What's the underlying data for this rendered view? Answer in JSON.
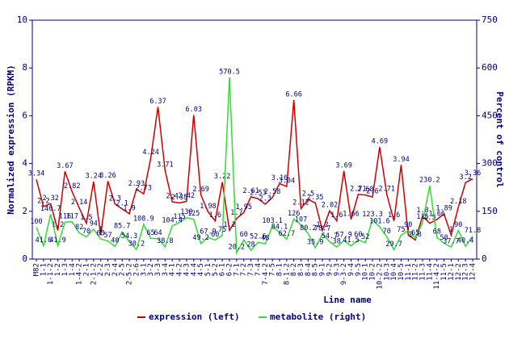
{
  "chart_data": {
    "type": "line",
    "xlabel": "Line name",
    "ylabel": "Normalized expression (RPKM)",
    "y2label": "Percent of control",
    "categories": [
      "M82",
      "1-1",
      "1-1-2",
      "1-2",
      "1-3",
      "1-4",
      "1-4-2",
      "2-1",
      "2-1-2",
      "2-2",
      "2-3",
      "2-4",
      "2-5",
      "2-5-2",
      "2-6",
      "3-1",
      "3-2",
      "3-3",
      "3-4",
      "4-1",
      "4-2",
      "4-3",
      "4-4",
      "4-5",
      "5-1",
      "5-2",
      "6-1",
      "6-2",
      "7-1",
      "7-2",
      "7-3",
      "7-4",
      "7-4-2",
      "7-5",
      "8-1",
      "8-1-2",
      "8-2",
      "8-3",
      "8-4",
      "8-5",
      "9-1",
      "9-2",
      "9-3",
      "9-3-2",
      "9-4",
      "9-5",
      "10-1",
      "10-2",
      "10-2-2",
      "10-3",
      "10-4",
      "10-5",
      "11-1",
      "11-2",
      "11-3",
      "11-4",
      "11-4-2",
      "11-5",
      "12-1",
      "12-2",
      "12-3",
      "12-4"
    ],
    "series": [
      {
        "name": "expression (left)",
        "color": "#cc0000",
        "axis": "y",
        "values": [
          3.34,
          2.2,
          2.32,
          1.2,
          3.67,
          2.82,
          2.14,
          1.5,
          3.24,
          1.0,
          3.26,
          2.3,
          2.1,
          1.9,
          2.93,
          2.73,
          4.24,
          6.37,
          3.71,
          2.4,
          2.35,
          2.42,
          6.03,
          2.69,
          1.98,
          1.6,
          3.22,
          1.2,
          1.7,
          1.95,
          2.61,
          2.53,
          2.3,
          2.58,
          3.16,
          3.04,
          6.66,
          2.12,
          2.5,
          2.35,
          1.2,
          2.02,
          1.6,
          3.69,
          1.66,
          2.71,
          2.68,
          2.6,
          4.69,
          2.71,
          1.6,
          3.94,
          1.0,
          0.8,
          1.8,
          1.5,
          1.66,
          1.89,
          1.0,
          2.18,
          3.2,
          3.36
        ]
      },
      {
        "name": "metabolite (right)",
        "color": "#33dd33",
        "axis": "y2",
        "values": [
          100,
          41.6,
          140.7,
          41.9,
          116,
          117,
          82,
          70,
          94,
          63,
          57,
          40,
          85.7,
          54.3,
          30.2,
          108.9,
          65,
          64,
          38.8,
          104.4,
          115,
          130,
          125,
          49.2,
          67.9,
          60,
          75,
          570.5,
          20.2,
          60,
          28,
          52.6,
          48,
          103.1,
          84.1,
          62.7,
          126,
          107,
          80.2,
          35.9,
          78.7,
          54.7,
          38,
          57.9,
          41.5,
          60,
          52,
          123.3,
          101.6,
          70,
          29.7,
          75,
          90,
          65,
          115,
          230.2,
          68,
          50,
          37.7,
          90,
          40.4,
          71.8
        ]
      }
    ],
    "ylim": [
      0,
      10
    ],
    "yticks": [
      0,
      2,
      4,
      6,
      8,
      10
    ],
    "y2lim": [
      0,
      750
    ],
    "y2ticks": [
      0,
      150,
      300,
      450,
      600,
      750
    ],
    "legend": "bottom"
  }
}
